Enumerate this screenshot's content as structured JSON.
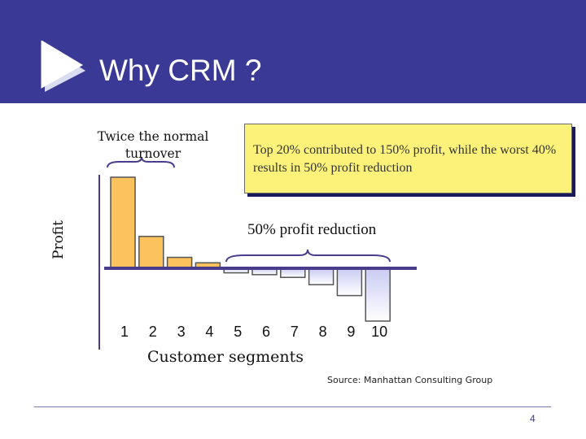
{
  "slide": {
    "title": "Why CRM ?",
    "page_number": "4",
    "source": "Source:  Manhattan Consulting Group",
    "colors": {
      "header_bg": "#3a3996",
      "positive_bar": "#fbc25d",
      "negative_bar": "#c9cbf3",
      "baseline": "#4a3c8c",
      "callout_bg": "#fcf27a"
    }
  },
  "chart_data": {
    "type": "bar",
    "categories": [
      "1",
      "2",
      "3",
      "4",
      "5",
      "6",
      "7",
      "8",
      "9",
      "10"
    ],
    "values": [
      100,
      35,
      12,
      6,
      -5,
      -7,
      -10,
      -18,
      -30,
      -58
    ],
    "xlabel": "Customer segments",
    "ylabel": "Profit",
    "ylim": [
      -65,
      110
    ],
    "grid": false,
    "annotations": [
      {
        "text": "Twice the normal turnover",
        "segments": [
          "1"
        ]
      },
      {
        "text": "50% profit reduction",
        "segments": [
          "5",
          "6",
          "7",
          "8",
          "9",
          "10"
        ]
      }
    ],
    "callout": "Top 20% contributed to 150% profit, while the worst 40% results in 50% profit reduction"
  }
}
